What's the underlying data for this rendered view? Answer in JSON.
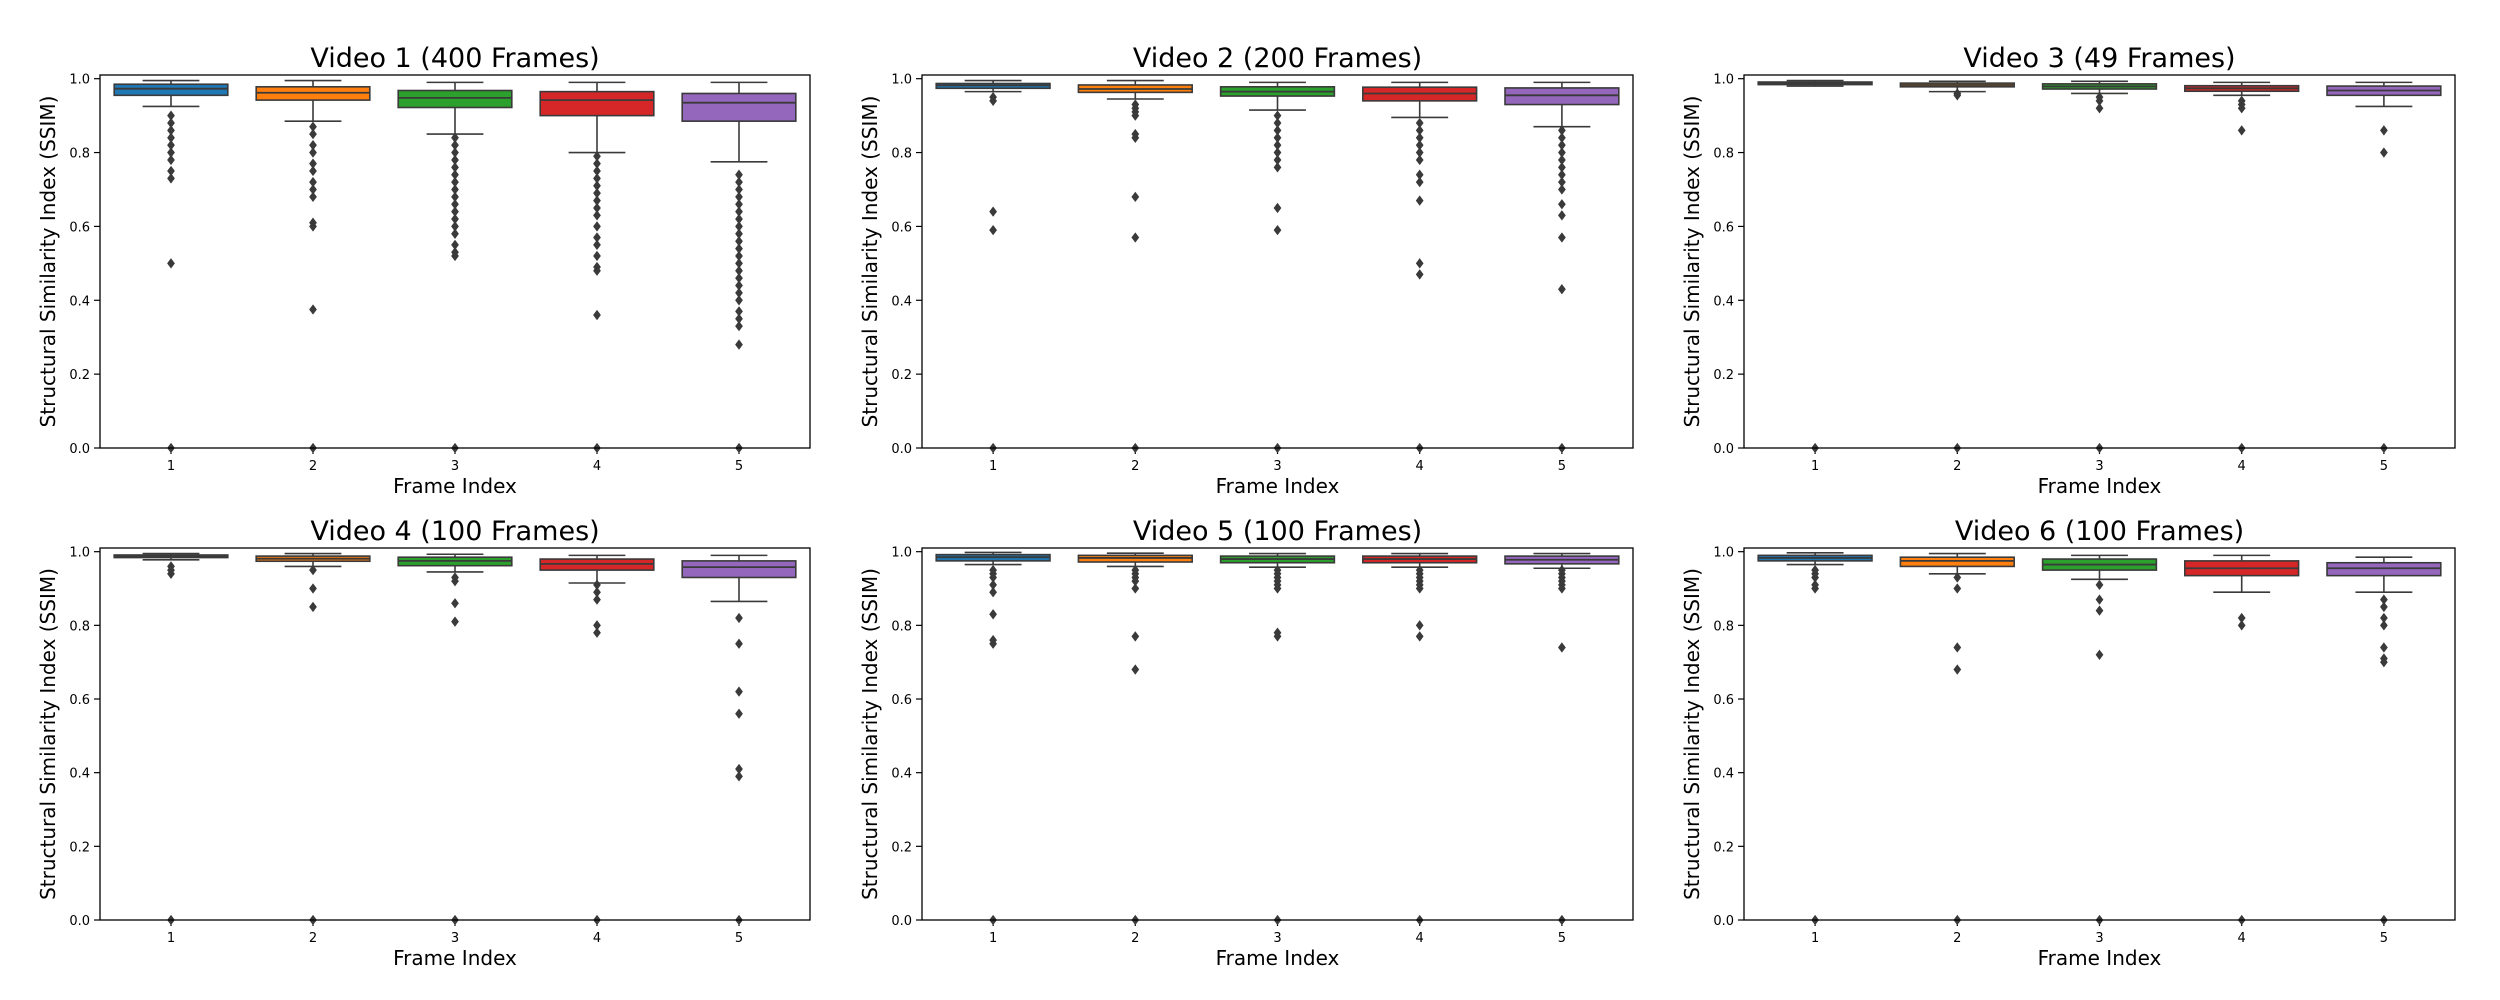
{
  "colors": {
    "1": "#1f77b4",
    "2": "#ff7f0e",
    "3": "#2ca02c",
    "4": "#d62728",
    "5": "#9467bd",
    "edge": "#3a3a3a"
  },
  "chart_data": [
    {
      "type": "box",
      "title": "Video 1 (400 Frames)",
      "xlabel": "Frame Index",
      "ylabel": "Structural Similarity Index (SSIM)",
      "ylim": [
        0,
        1.01
      ],
      "yticks": [
        "0.0",
        "0.2",
        "0.4",
        "0.6",
        "0.8",
        "1.0"
      ],
      "categories": [
        "1",
        "2",
        "3",
        "4",
        "5"
      ],
      "boxes": [
        {
          "whislo": 0.925,
          "q1": 0.955,
          "med": 0.973,
          "q3": 0.985,
          "whishi": 0.995,
          "fliers": [
            0.9,
            0.88,
            0.86,
            0.84,
            0.82,
            0.8,
            0.78,
            0.75,
            0.73,
            0.5,
            0.0
          ]
        },
        {
          "whislo": 0.885,
          "q1": 0.942,
          "med": 0.962,
          "q3": 0.978,
          "whishi": 0.995,
          "fliers": [
            0.87,
            0.85,
            0.82,
            0.8,
            0.77,
            0.75,
            0.72,
            0.7,
            0.68,
            0.61,
            0.6,
            0.375,
            0.0
          ]
        },
        {
          "whislo": 0.85,
          "q1": 0.922,
          "med": 0.948,
          "q3": 0.968,
          "whishi": 0.99,
          "fliers": [
            0.84,
            0.82,
            0.8,
            0.78,
            0.76,
            0.74,
            0.72,
            0.7,
            0.68,
            0.66,
            0.64,
            0.62,
            0.6,
            0.58,
            0.55,
            0.53,
            0.52,
            0.0
          ]
        },
        {
          "whislo": 0.8,
          "q1": 0.9,
          "med": 0.942,
          "q3": 0.965,
          "whishi": 0.99,
          "fliers": [
            0.79,
            0.77,
            0.75,
            0.73,
            0.71,
            0.69,
            0.67,
            0.65,
            0.63,
            0.6,
            0.57,
            0.55,
            0.52,
            0.49,
            0.48,
            0.36,
            0.0
          ]
        },
        {
          "whislo": 0.775,
          "q1": 0.885,
          "med": 0.935,
          "q3": 0.96,
          "whishi": 0.99,
          "fliers": [
            0.74,
            0.72,
            0.7,
            0.68,
            0.66,
            0.64,
            0.62,
            0.6,
            0.58,
            0.56,
            0.54,
            0.52,
            0.5,
            0.48,
            0.46,
            0.44,
            0.42,
            0.4,
            0.37,
            0.35,
            0.33,
            0.28,
            0.0
          ]
        }
      ]
    },
    {
      "type": "box",
      "title": "Video 2 (200 Frames)",
      "xlabel": "Frame Index",
      "ylabel": "Structural Similarity Index (SSIM)",
      "ylim": [
        0,
        1.01
      ],
      "yticks": [
        "0.0",
        "0.2",
        "0.4",
        "0.6",
        "0.8",
        "1.0"
      ],
      "categories": [
        "1",
        "2",
        "3",
        "4",
        "5"
      ],
      "boxes": [
        {
          "whislo": 0.965,
          "q1": 0.974,
          "med": 0.982,
          "q3": 0.987,
          "whishi": 0.995,
          "fliers": [
            0.95,
            0.94,
            0.64,
            0.59,
            0.0
          ]
        },
        {
          "whislo": 0.945,
          "q1": 0.963,
          "med": 0.972,
          "q3": 0.983,
          "whishi": 0.995,
          "fliers": [
            0.93,
            0.92,
            0.91,
            0.9,
            0.85,
            0.84,
            0.68,
            0.57,
            0.0
          ]
        },
        {
          "whislo": 0.915,
          "q1": 0.953,
          "med": 0.965,
          "q3": 0.978,
          "whishi": 0.99,
          "fliers": [
            0.9,
            0.88,
            0.86,
            0.84,
            0.82,
            0.8,
            0.78,
            0.76,
            0.65,
            0.59,
            0.0
          ]
        },
        {
          "whislo": 0.895,
          "q1": 0.94,
          "med": 0.96,
          "q3": 0.977,
          "whishi": 0.99,
          "fliers": [
            0.88,
            0.86,
            0.84,
            0.82,
            0.8,
            0.78,
            0.74,
            0.72,
            0.67,
            0.5,
            0.47,
            0.0
          ]
        },
        {
          "whislo": 0.87,
          "q1": 0.93,
          "med": 0.955,
          "q3": 0.975,
          "whishi": 0.99,
          "fliers": [
            0.86,
            0.84,
            0.82,
            0.8,
            0.78,
            0.76,
            0.74,
            0.72,
            0.7,
            0.66,
            0.63,
            0.57,
            0.43,
            0.0
          ]
        }
      ]
    },
    {
      "type": "box",
      "title": "Video 3 (49 Frames)",
      "xlabel": "Frame Index",
      "ylabel": "Structural Similarity Index (SSIM)",
      "ylim": [
        0,
        1.01
      ],
      "yticks": [
        "0.0",
        "0.2",
        "0.4",
        "0.6",
        "0.8",
        "1.0"
      ],
      "categories": [
        "1",
        "2",
        "3",
        "4",
        "5"
      ],
      "boxes": [
        {
          "whislo": 0.98,
          "q1": 0.984,
          "med": 0.988,
          "q3": 0.991,
          "whishi": 0.995,
          "fliers": [
            0.0
          ]
        },
        {
          "whislo": 0.965,
          "q1": 0.978,
          "med": 0.983,
          "q3": 0.988,
          "whishi": 0.993,
          "fliers": [
            0.96,
            0.955,
            0.0
          ]
        },
        {
          "whislo": 0.96,
          "q1": 0.972,
          "med": 0.979,
          "q3": 0.986,
          "whishi": 0.993,
          "fliers": [
            0.95,
            0.94,
            0.92,
            0.0
          ]
        },
        {
          "whislo": 0.955,
          "q1": 0.966,
          "med": 0.974,
          "q3": 0.981,
          "whishi": 0.99,
          "fliers": [
            0.94,
            0.93,
            0.92,
            0.86,
            0.0
          ]
        },
        {
          "whislo": 0.925,
          "q1": 0.955,
          "med": 0.968,
          "q3": 0.98,
          "whishi": 0.99,
          "fliers": [
            0.86,
            0.8,
            0.0
          ]
        }
      ]
    },
    {
      "type": "box",
      "title": "Video 4 (100 Frames)",
      "xlabel": "Frame Index",
      "ylabel": "Structural Similarity Index (SSIM)",
      "ylim": [
        0,
        1.01
      ],
      "yticks": [
        "0.0",
        "0.2",
        "0.4",
        "0.6",
        "0.8",
        "1.0"
      ],
      "categories": [
        "1",
        "2",
        "3",
        "4",
        "5"
      ],
      "boxes": [
        {
          "whislo": 0.978,
          "q1": 0.984,
          "med": 0.988,
          "q3": 0.991,
          "whishi": 0.995,
          "fliers": [
            0.96,
            0.95,
            0.94,
            0.0
          ]
        },
        {
          "whislo": 0.96,
          "q1": 0.974,
          "med": 0.981,
          "q3": 0.988,
          "whishi": 0.995,
          "fliers": [
            0.95,
            0.9,
            0.85,
            0.0
          ]
        },
        {
          "whislo": 0.945,
          "q1": 0.962,
          "med": 0.975,
          "q3": 0.985,
          "whishi": 0.993,
          "fliers": [
            0.93,
            0.92,
            0.86,
            0.81,
            0.0
          ]
        },
        {
          "whislo": 0.915,
          "q1": 0.95,
          "med": 0.967,
          "q3": 0.98,
          "whishi": 0.99,
          "fliers": [
            0.91,
            0.89,
            0.87,
            0.8,
            0.78,
            0.0
          ]
        },
        {
          "whislo": 0.865,
          "q1": 0.93,
          "med": 0.958,
          "q3": 0.975,
          "whishi": 0.99,
          "fliers": [
            0.82,
            0.75,
            0.62,
            0.56,
            0.41,
            0.39,
            0.0
          ]
        }
      ]
    },
    {
      "type": "box",
      "title": "Video 5 (100 Frames)",
      "xlabel": "Frame Index",
      "ylabel": "Structural Similarity Index (SSIM)",
      "ylim": [
        0,
        1.01
      ],
      "yticks": [
        "0.0",
        "0.2",
        "0.4",
        "0.6",
        "0.8",
        "1.0"
      ],
      "categories": [
        "1",
        "2",
        "3",
        "4",
        "5"
      ],
      "boxes": [
        {
          "whislo": 0.965,
          "q1": 0.975,
          "med": 0.985,
          "q3": 0.992,
          "whishi": 0.998,
          "fliers": [
            0.95,
            0.94,
            0.93,
            0.91,
            0.89,
            0.83,
            0.76,
            0.75,
            0.0
          ]
        },
        {
          "whislo": 0.96,
          "q1": 0.972,
          "med": 0.983,
          "q3": 0.99,
          "whishi": 0.996,
          "fliers": [
            0.95,
            0.94,
            0.93,
            0.92,
            0.9,
            0.77,
            0.68,
            0.0
          ]
        },
        {
          "whislo": 0.958,
          "q1": 0.97,
          "med": 0.98,
          "q3": 0.988,
          "whishi": 0.995,
          "fliers": [
            0.95,
            0.94,
            0.93,
            0.92,
            0.91,
            0.9,
            0.78,
            0.77,
            0.0
          ]
        },
        {
          "whislo": 0.958,
          "q1": 0.97,
          "med": 0.98,
          "q3": 0.988,
          "whishi": 0.995,
          "fliers": [
            0.95,
            0.94,
            0.93,
            0.92,
            0.91,
            0.9,
            0.8,
            0.77,
            0.0
          ]
        },
        {
          "whislo": 0.955,
          "q1": 0.967,
          "med": 0.978,
          "q3": 0.988,
          "whishi": 0.995,
          "fliers": [
            0.95,
            0.94,
            0.93,
            0.92,
            0.91,
            0.9,
            0.74,
            0.0
          ]
        }
      ]
    },
    {
      "type": "box",
      "title": "Video 6 (100 Frames)",
      "xlabel": "Frame Index",
      "ylabel": "Structural Similarity Index (SSIM)",
      "ylim": [
        0,
        1.01
      ],
      "yticks": [
        "0.0",
        "0.2",
        "0.4",
        "0.6",
        "0.8",
        "1.0"
      ],
      "categories": [
        "1",
        "2",
        "3",
        "4",
        "5"
      ],
      "boxes": [
        {
          "whislo": 0.965,
          "q1": 0.975,
          "med": 0.983,
          "q3": 0.99,
          "whishi": 0.997,
          "fliers": [
            0.95,
            0.94,
            0.93,
            0.91,
            0.9,
            0.0
          ]
        },
        {
          "whislo": 0.94,
          "q1": 0.96,
          "med": 0.975,
          "q3": 0.985,
          "whishi": 0.995,
          "fliers": [
            0.93,
            0.9,
            0.74,
            0.68,
            0.0
          ]
        },
        {
          "whislo": 0.925,
          "q1": 0.95,
          "med": 0.965,
          "q3": 0.98,
          "whishi": 0.99,
          "fliers": [
            0.91,
            0.87,
            0.84,
            0.72,
            0.0
          ]
        },
        {
          "whislo": 0.89,
          "q1": 0.935,
          "med": 0.955,
          "q3": 0.975,
          "whishi": 0.99,
          "fliers": [
            0.82,
            0.8,
            0.0
          ]
        },
        {
          "whislo": 0.89,
          "q1": 0.935,
          "med": 0.955,
          "q3": 0.97,
          "whishi": 0.985,
          "fliers": [
            0.87,
            0.85,
            0.82,
            0.8,
            0.74,
            0.71,
            0.7,
            0.0
          ]
        }
      ]
    }
  ]
}
